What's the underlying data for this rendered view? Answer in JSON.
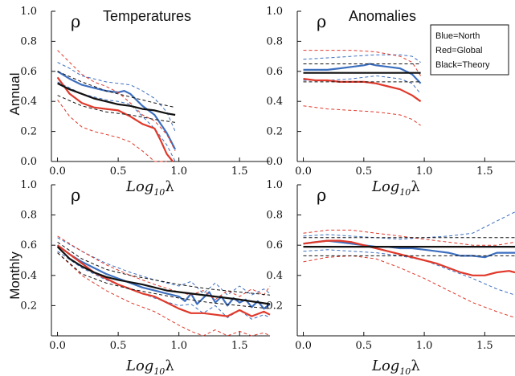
{
  "figure": {
    "row_labels": [
      "Annual",
      "Monthly"
    ],
    "legend": [
      "Blue=North",
      "Red=Global",
      "Black=Theory"
    ],
    "colors": {
      "north": "#3d6fbf",
      "global": "#e0392b",
      "theory": "#111111"
    }
  },
  "chart_data": [
    {
      "type": "line",
      "title": "Temperatures",
      "ylabel_symbol": "ρ",
      "xlabel": {
        "base": "Log",
        "sub": "10",
        "var": "λ"
      },
      "xlim": [
        -0.05,
        1.75
      ],
      "ylim": [
        0,
        1
      ],
      "xticks": [
        "0.0",
        "0.5",
        "1.0",
        "1.5"
      ],
      "yticks": [
        "0.0",
        "0.2",
        "0.4",
        "0.6",
        "0.8",
        "1.0"
      ],
      "series": [
        {
          "name": "Blue=North",
          "style": "solid",
          "x": [
            0,
            0.1,
            0.2,
            0.3,
            0.4,
            0.5,
            0.55,
            0.6,
            0.7,
            0.8,
            0.9,
            0.97
          ],
          "y": [
            0.6,
            0.55,
            0.51,
            0.49,
            0.47,
            0.46,
            0.47,
            0.45,
            0.37,
            0.31,
            0.19,
            0.08
          ]
        },
        {
          "style": "dashed",
          "x": [
            0,
            0.1,
            0.2,
            0.3,
            0.4,
            0.5,
            0.6,
            0.7,
            0.8,
            0.9,
            0.97
          ],
          "y": [
            0.66,
            0.62,
            0.57,
            0.55,
            0.53,
            0.52,
            0.51,
            0.47,
            0.42,
            0.33,
            0.2
          ]
        },
        {
          "style": "dashed",
          "x": [
            0,
            0.1,
            0.2,
            0.3,
            0.4,
            0.5,
            0.6,
            0.7,
            0.8,
            0.9,
            0.97
          ],
          "y": [
            0.53,
            0.49,
            0.45,
            0.43,
            0.41,
            0.4,
            0.38,
            0.3,
            0.22,
            0.11,
            0.0
          ]
        },
        {
          "name": "Red=Global",
          "style": "solid",
          "x": [
            0,
            0.1,
            0.2,
            0.3,
            0.4,
            0.5,
            0.6,
            0.7,
            0.8,
            0.85,
            0.9,
            0.95
          ],
          "y": [
            0.56,
            0.45,
            0.39,
            0.36,
            0.35,
            0.34,
            0.3,
            0.25,
            0.22,
            0.14,
            0.05,
            0.0
          ]
        },
        {
          "style": "dashed",
          "x": [
            0,
            0.1,
            0.2,
            0.3,
            0.4,
            0.5,
            0.6,
            0.7,
            0.8,
            0.9,
            0.97
          ],
          "y": [
            0.74,
            0.66,
            0.58,
            0.53,
            0.5,
            0.46,
            0.39,
            0.31,
            0.27,
            0.18,
            0.07
          ]
        },
        {
          "style": "dashed",
          "x": [
            0,
            0.1,
            0.2,
            0.3,
            0.4,
            0.5,
            0.6,
            0.7,
            0.8,
            0.9
          ],
          "y": [
            0.41,
            0.3,
            0.23,
            0.2,
            0.18,
            0.16,
            0.13,
            0.07,
            0.0,
            0.0
          ]
        },
        {
          "name": "Black=Theory",
          "style": "solid",
          "x": [
            0,
            0.1,
            0.2,
            0.3,
            0.4,
            0.5,
            0.6,
            0.7,
            0.8,
            0.9,
            0.97
          ],
          "y": [
            0.52,
            0.48,
            0.45,
            0.42,
            0.4,
            0.38,
            0.37,
            0.35,
            0.34,
            0.32,
            0.31
          ]
        },
        {
          "style": "dashed",
          "x": [
            0,
            0.2,
            0.4,
            0.6,
            0.8,
            0.97
          ],
          "y": [
            0.6,
            0.53,
            0.47,
            0.43,
            0.39,
            0.36
          ]
        },
        {
          "style": "dashed",
          "x": [
            0,
            0.2,
            0.4,
            0.6,
            0.8,
            0.97
          ],
          "y": [
            0.44,
            0.37,
            0.33,
            0.31,
            0.28,
            0.26
          ]
        }
      ]
    },
    {
      "type": "line",
      "title": "Anomalies",
      "ylabel_symbol": "ρ",
      "xlabel": {
        "base": "Log",
        "sub": "10",
        "var": "λ"
      },
      "xlim": [
        -0.05,
        1.75
      ],
      "ylim": [
        0,
        1
      ],
      "xticks": [
        "0.0",
        "0.5",
        "1.0",
        "1.5"
      ],
      "yticks": [
        "0.0",
        "0.2",
        "0.4",
        "0.6",
        "0.8",
        "1.0"
      ],
      "series": [
        {
          "name": "Blue=North",
          "style": "solid",
          "x": [
            0,
            0.1,
            0.2,
            0.3,
            0.4,
            0.5,
            0.55,
            0.6,
            0.7,
            0.8,
            0.9,
            0.97
          ],
          "y": [
            0.61,
            0.61,
            0.61,
            0.62,
            0.63,
            0.64,
            0.65,
            0.64,
            0.63,
            0.62,
            0.58,
            0.52
          ]
        },
        {
          "style": "dashed",
          "x": [
            0,
            0.2,
            0.4,
            0.6,
            0.8,
            0.9,
            0.97
          ],
          "y": [
            0.68,
            0.69,
            0.7,
            0.71,
            0.71,
            0.7,
            0.66
          ]
        },
        {
          "style": "dashed",
          "x": [
            0,
            0.2,
            0.4,
            0.6,
            0.8,
            0.9,
            0.97
          ],
          "y": [
            0.54,
            0.54,
            0.55,
            0.57,
            0.55,
            0.52,
            0.45
          ]
        },
        {
          "name": "Red=Global",
          "style": "solid",
          "x": [
            0,
            0.1,
            0.2,
            0.3,
            0.4,
            0.5,
            0.6,
            0.7,
            0.8,
            0.9,
            0.97
          ],
          "y": [
            0.55,
            0.54,
            0.54,
            0.53,
            0.53,
            0.53,
            0.52,
            0.5,
            0.48,
            0.44,
            0.4
          ]
        },
        {
          "style": "dashed",
          "x": [
            0,
            0.2,
            0.4,
            0.6,
            0.8,
            0.9,
            0.97
          ],
          "y": [
            0.74,
            0.74,
            0.74,
            0.73,
            0.7,
            0.66,
            0.57
          ]
        },
        {
          "style": "dashed",
          "x": [
            0,
            0.2,
            0.4,
            0.6,
            0.8,
            0.9,
            0.97
          ],
          "y": [
            0.37,
            0.35,
            0.34,
            0.33,
            0.31,
            0.28,
            0.24
          ]
        },
        {
          "name": "Black=Theory",
          "style": "solid",
          "x": [
            0,
            0.97
          ],
          "y": [
            0.59,
            0.59
          ]
        },
        {
          "style": "dashed",
          "x": [
            0,
            0.97
          ],
          "y": [
            0.65,
            0.65
          ]
        },
        {
          "style": "dashed",
          "x": [
            0,
            0.97
          ],
          "y": [
            0.53,
            0.53
          ]
        }
      ]
    },
    {
      "type": "line",
      "title": "",
      "ylabel_symbol": "ρ",
      "xlabel": {
        "base": "Log",
        "sub": "10",
        "var": "λ"
      },
      "xlim": [
        -0.05,
        1.75
      ],
      "ylim": [
        0,
        1
      ],
      "xticks": [
        "0.0",
        "0.5",
        "1.0",
        "1.5"
      ],
      "yticks": [
        "0.2",
        "0.4",
        "0.6",
        "0.8",
        "1.0"
      ],
      "series": [
        {
          "name": "Blue=North",
          "style": "solid",
          "x": [
            0,
            0.1,
            0.2,
            0.3,
            0.4,
            0.5,
            0.6,
            0.7,
            0.8,
            0.9,
            1.0,
            1.05,
            1.1,
            1.15,
            1.2,
            1.25,
            1.3,
            1.35,
            1.4,
            1.45,
            1.5,
            1.55,
            1.6,
            1.65,
            1.7,
            1.75
          ],
          "y": [
            0.6,
            0.54,
            0.49,
            0.45,
            0.41,
            0.38,
            0.35,
            0.32,
            0.3,
            0.28,
            0.26,
            0.23,
            0.28,
            0.21,
            0.25,
            0.29,
            0.22,
            0.26,
            0.2,
            0.25,
            0.22,
            0.24,
            0.19,
            0.23,
            0.18,
            0.21
          ]
        },
        {
          "style": "dashed",
          "x": [
            0,
            0.2,
            0.4,
            0.6,
            0.8,
            1.0,
            1.1,
            1.2,
            1.3,
            1.4,
            1.5,
            1.6,
            1.7,
            1.75
          ],
          "y": [
            0.65,
            0.56,
            0.48,
            0.42,
            0.37,
            0.33,
            0.36,
            0.28,
            0.35,
            0.27,
            0.33,
            0.27,
            0.31,
            0.28
          ]
        },
        {
          "style": "dashed",
          "x": [
            0,
            0.2,
            0.4,
            0.6,
            0.8,
            1.0,
            1.1,
            1.2,
            1.3,
            1.4,
            1.5,
            1.6,
            1.7,
            1.75
          ],
          "y": [
            0.56,
            0.45,
            0.37,
            0.31,
            0.25,
            0.2,
            0.21,
            0.15,
            0.2,
            0.12,
            0.17,
            0.11,
            0.14,
            0.12
          ]
        },
        {
          "name": "Red=Global",
          "style": "solid",
          "x": [
            0,
            0.1,
            0.2,
            0.3,
            0.4,
            0.5,
            0.6,
            0.7,
            0.8,
            0.9,
            1.0,
            1.1,
            1.2,
            1.3,
            1.4,
            1.5,
            1.6,
            1.7,
            1.75
          ],
          "y": [
            0.6,
            0.54,
            0.48,
            0.42,
            0.38,
            0.34,
            0.31,
            0.28,
            0.26,
            0.22,
            0.18,
            0.15,
            0.15,
            0.14,
            0.13,
            0.17,
            0.13,
            0.16,
            0.14
          ]
        },
        {
          "style": "dashed",
          "x": [
            0,
            0.2,
            0.4,
            0.6,
            0.8,
            1.0,
            1.1,
            1.2,
            1.3,
            1.4,
            1.5,
            1.6,
            1.7,
            1.75
          ],
          "y": [
            0.66,
            0.56,
            0.47,
            0.4,
            0.34,
            0.29,
            0.27,
            0.3,
            0.24,
            0.3,
            0.26,
            0.31,
            0.27,
            0.33
          ]
        },
        {
          "style": "dashed",
          "x": [
            0,
            0.2,
            0.4,
            0.6,
            0.8,
            1.0,
            1.1,
            1.2,
            1.3,
            1.4,
            1.5,
            1.6,
            1.7,
            1.75
          ],
          "y": [
            0.55,
            0.4,
            0.3,
            0.22,
            0.16,
            0.07,
            0.03,
            0.0,
            0.04,
            0.0,
            0.03,
            0.0,
            0.02,
            0.0
          ]
        },
        {
          "name": "Black=Theory",
          "style": "solid",
          "x": [
            0,
            0.1,
            0.2,
            0.3,
            0.4,
            0.5,
            0.7,
            0.9,
            1.1,
            1.3,
            1.5,
            1.75
          ],
          "y": [
            0.59,
            0.51,
            0.46,
            0.42,
            0.39,
            0.37,
            0.34,
            0.3,
            0.28,
            0.26,
            0.24,
            0.21
          ]
        },
        {
          "style": "dashed",
          "x": [
            0,
            0.2,
            0.4,
            0.6,
            0.8,
            1.0,
            1.25,
            1.5,
            1.75
          ],
          "y": [
            0.62,
            0.51,
            0.44,
            0.4,
            0.37,
            0.34,
            0.31,
            0.29,
            0.27
          ]
        },
        {
          "style": "dashed",
          "x": [
            0,
            0.2,
            0.4,
            0.6,
            0.8,
            1.0,
            1.25,
            1.5,
            1.75
          ],
          "y": [
            0.55,
            0.41,
            0.35,
            0.31,
            0.28,
            0.25,
            0.22,
            0.2,
            0.18
          ]
        }
      ]
    },
    {
      "type": "line",
      "title": "",
      "ylabel_symbol": "ρ",
      "xlabel": {
        "base": "Log",
        "sub": "10",
        "var": "λ"
      },
      "xlim": [
        -0.05,
        1.75
      ],
      "ylim": [
        0,
        1
      ],
      "xticks": [
        "0.0",
        "0.5",
        "1.0",
        "1.5"
      ],
      "yticks": [
        "0.2",
        "0.4",
        "0.6",
        "0.8",
        "1.0"
      ],
      "series": [
        {
          "name": "Blue=North",
          "style": "solid",
          "x": [
            0,
            0.1,
            0.2,
            0.3,
            0.4,
            0.5,
            0.6,
            0.7,
            0.8,
            0.9,
            1.0,
            1.1,
            1.2,
            1.3,
            1.4,
            1.5,
            1.6,
            1.7,
            1.75
          ],
          "y": [
            0.61,
            0.62,
            0.63,
            0.62,
            0.61,
            0.6,
            0.59,
            0.59,
            0.58,
            0.58,
            0.57,
            0.56,
            0.55,
            0.53,
            0.53,
            0.52,
            0.55,
            0.55,
            0.55
          ]
        },
        {
          "style": "dashed",
          "x": [
            0,
            0.2,
            0.4,
            0.6,
            0.8,
            1.0,
            1.2,
            1.4,
            1.6,
            1.75
          ],
          "y": [
            0.66,
            0.67,
            0.66,
            0.65,
            0.64,
            0.65,
            0.66,
            0.68,
            0.76,
            0.82
          ]
        },
        {
          "style": "dashed",
          "x": [
            0,
            0.2,
            0.4,
            0.6,
            0.8,
            1.0,
            1.2,
            1.4,
            1.6,
            1.75
          ],
          "y": [
            0.56,
            0.57,
            0.56,
            0.55,
            0.53,
            0.5,
            0.44,
            0.38,
            0.31,
            0.27
          ]
        },
        {
          "name": "Red=Global",
          "style": "solid",
          "x": [
            0,
            0.1,
            0.2,
            0.3,
            0.4,
            0.5,
            0.6,
            0.7,
            0.8,
            0.9,
            1.0,
            1.1,
            1.2,
            1.3,
            1.4,
            1.5,
            1.6,
            1.7,
            1.75
          ],
          "y": [
            0.61,
            0.62,
            0.63,
            0.63,
            0.62,
            0.6,
            0.58,
            0.56,
            0.54,
            0.52,
            0.5,
            0.48,
            0.45,
            0.42,
            0.4,
            0.4,
            0.42,
            0.43,
            0.42
          ]
        },
        {
          "style": "dashed",
          "x": [
            0,
            0.2,
            0.4,
            0.6,
            0.8,
            1.0,
            1.2,
            1.4,
            1.6,
            1.75
          ],
          "y": [
            0.68,
            0.7,
            0.7,
            0.68,
            0.66,
            0.64,
            0.62,
            0.6,
            0.6,
            0.62
          ]
        },
        {
          "style": "dashed",
          "x": [
            0,
            0.2,
            0.4,
            0.6,
            0.8,
            1.0,
            1.2,
            1.4,
            1.6,
            1.75
          ],
          "y": [
            0.49,
            0.52,
            0.53,
            0.51,
            0.45,
            0.38,
            0.3,
            0.22,
            0.16,
            0.12
          ]
        },
        {
          "name": "Black=Theory",
          "style": "solid",
          "x": [
            0,
            1.75
          ],
          "y": [
            0.59,
            0.59
          ]
        },
        {
          "style": "dashed",
          "x": [
            0,
            1.75
          ],
          "y": [
            0.65,
            0.65
          ]
        },
        {
          "style": "dashed",
          "x": [
            0,
            1.75
          ],
          "y": [
            0.53,
            0.53
          ]
        }
      ]
    }
  ]
}
